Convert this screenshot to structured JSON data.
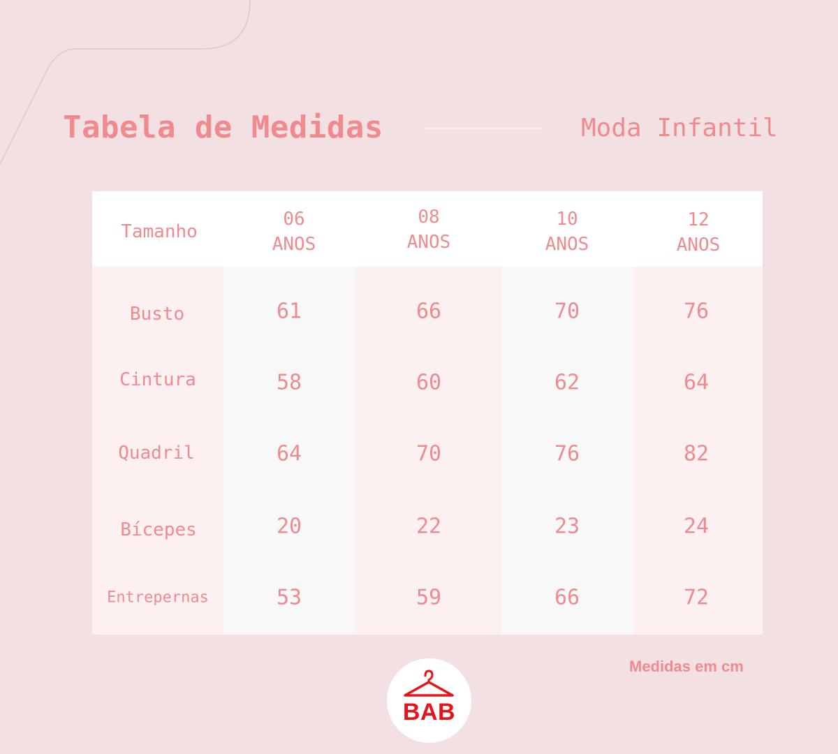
{
  "header": {
    "title": "Tabela de Medidas",
    "subtitle": "Moda Infantil"
  },
  "table": {
    "corner_label": "Tamanho",
    "columns": [
      {
        "num": "06",
        "unit": "ANOS"
      },
      {
        "num": "08",
        "unit": "ANOS"
      },
      {
        "num": "10",
        "unit": "ANOS"
      },
      {
        "num": "12",
        "unit": "ANOS"
      }
    ],
    "rows": [
      {
        "label": "Busto",
        "values": [
          "61",
          "66",
          "70",
          "76"
        ]
      },
      {
        "label": "Cintura",
        "values": [
          "58",
          "60",
          "62",
          "64"
        ]
      },
      {
        "label": "Quadril",
        "values": [
          "64",
          "70",
          "76",
          "82"
        ]
      },
      {
        "label": "Bícepes",
        "values": [
          "20",
          "22",
          "23",
          "24"
        ]
      },
      {
        "label": "Entrepernas",
        "values": [
          "53",
          "59",
          "66",
          "72"
        ]
      }
    ]
  },
  "footer": {
    "note": "Medidas em cm",
    "logo_text": "BAB",
    "logo_icon": "hanger-icon"
  },
  "colors": {
    "background": "#f2e0e2",
    "accent": "#ef8b8f",
    "logo_red": "#e8121a"
  }
}
